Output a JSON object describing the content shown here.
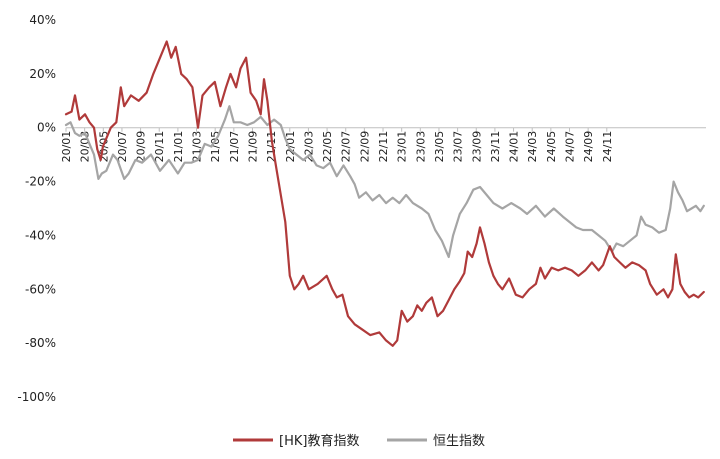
{
  "chart_data": {
    "type": "line",
    "title": "",
    "xlabel": "",
    "ylabel": "",
    "ylim": [
      -100,
      40
    ],
    "yticks": [
      "40%",
      "20%",
      "0%",
      "-20%",
      "-40%",
      "-60%",
      "-80%",
      "-100%"
    ],
    "ytick_values": [
      40,
      20,
      0,
      -20,
      -40,
      -60,
      -80,
      -100
    ],
    "xticks": [
      "20/01",
      "20/03",
      "20/05",
      "20/07",
      "20/09",
      "20/11",
      "21/01",
      "21/03",
      "21/05",
      "21/07",
      "21/09",
      "21/11",
      "22/01",
      "22/03",
      "22/05",
      "22/07",
      "22/09",
      "22/11",
      "23/01",
      "23/03",
      "23/05",
      "23/07",
      "23/09",
      "23/11",
      "24/01",
      "24/03",
      "24/05",
      "24/07",
      "24/09",
      "24/11"
    ],
    "x_range": [
      "2020-01",
      "2024-12"
    ],
    "grid": false,
    "legend_position": "bottom",
    "series": [
      {
        "name": "[HK]教育指数",
        "color": "#B03A3A",
        "points": [
          [
            2020.0,
            5
          ],
          [
            2020.05,
            6
          ],
          [
            2020.08,
            12
          ],
          [
            2020.12,
            3
          ],
          [
            2020.17,
            5
          ],
          [
            2020.21,
            2
          ],
          [
            2020.25,
            0
          ],
          [
            2020.28,
            -8
          ],
          [
            2020.31,
            -12
          ],
          [
            2020.33,
            -7
          ],
          [
            2020.4,
            0
          ],
          [
            2020.45,
            2
          ],
          [
            2020.49,
            15
          ],
          [
            2020.52,
            8
          ],
          [
            2020.58,
            12
          ],
          [
            2020.65,
            10
          ],
          [
            2020.72,
            13
          ],
          [
            2020.78,
            20
          ],
          [
            2020.83,
            25
          ],
          [
            2020.9,
            32
          ],
          [
            2020.94,
            26
          ],
          [
            2020.98,
            30
          ],
          [
            2021.03,
            20
          ],
          [
            2021.08,
            18
          ],
          [
            2021.13,
            15
          ],
          [
            2021.18,
            0
          ],
          [
            2021.22,
            12
          ],
          [
            2021.28,
            15
          ],
          [
            2021.33,
            17
          ],
          [
            2021.38,
            8
          ],
          [
            2021.43,
            15
          ],
          [
            2021.47,
            20
          ],
          [
            2021.52,
            15
          ],
          [
            2021.56,
            22
          ],
          [
            2021.61,
            26
          ],
          [
            2021.65,
            13
          ],
          [
            2021.7,
            10
          ],
          [
            2021.74,
            5
          ],
          [
            2021.77,
            18
          ],
          [
            2021.8,
            10
          ],
          [
            2021.84,
            -5
          ],
          [
            2021.88,
            -15
          ],
          [
            2021.92,
            -25
          ],
          [
            2021.96,
            -35
          ],
          [
            2022.0,
            -55
          ],
          [
            2022.04,
            -60
          ],
          [
            2022.08,
            -58
          ],
          [
            2022.12,
            -55
          ],
          [
            2022.17,
            -60
          ],
          [
            2022.25,
            -58
          ],
          [
            2022.33,
            -55
          ],
          [
            2022.38,
            -60
          ],
          [
            2022.42,
            -63
          ],
          [
            2022.47,
            -62
          ],
          [
            2022.52,
            -70
          ],
          [
            2022.58,
            -73
          ],
          [
            2022.65,
            -75
          ],
          [
            2022.72,
            -77
          ],
          [
            2022.8,
            -76
          ],
          [
            2022.86,
            -79
          ],
          [
            2022.92,
            -81
          ],
          [
            2022.96,
            -79
          ],
          [
            2023.0,
            -68
          ],
          [
            2023.05,
            -72
          ],
          [
            2023.1,
            -70
          ],
          [
            2023.14,
            -66
          ],
          [
            2023.18,
            -68
          ],
          [
            2023.22,
            -65
          ],
          [
            2023.27,
            -63
          ],
          [
            2023.32,
            -70
          ],
          [
            2023.37,
            -68
          ],
          [
            2023.42,
            -64
          ],
          [
            2023.47,
            -60
          ],
          [
            2023.52,
            -57
          ],
          [
            2023.56,
            -54
          ],
          [
            2023.59,
            -46
          ],
          [
            2023.63,
            -48
          ],
          [
            2023.67,
            -43
          ],
          [
            2023.7,
            -37
          ],
          [
            2023.74,
            -43
          ],
          [
            2023.78,
            -50
          ],
          [
            2023.82,
            -55
          ],
          [
            2023.86,
            -58
          ],
          [
            2023.9,
            -60
          ],
          [
            2023.96,
            -56
          ],
          [
            2024.02,
            -62
          ],
          [
            2024.08,
            -63
          ],
          [
            2024.14,
            -60
          ],
          [
            2024.2,
            -58
          ],
          [
            2024.24,
            -52
          ],
          [
            2024.28,
            -56
          ],
          [
            2024.34,
            -52
          ],
          [
            2024.4,
            -53
          ],
          [
            2024.46,
            -52
          ],
          [
            2024.52,
            -53
          ],
          [
            2024.58,
            -55
          ],
          [
            2024.64,
            -53
          ],
          [
            2024.7,
            -50
          ],
          [
            2024.76,
            -53
          ],
          [
            2024.8,
            -51
          ],
          [
            2024.86,
            -44
          ],
          [
            2024.9,
            -48
          ],
          [
            2024.95,
            -50
          ],
          [
            2025.0,
            -52
          ],
          [
            2025.06,
            -50
          ],
          [
            2025.12,
            -51
          ],
          [
            2025.18,
            -53
          ],
          [
            2025.22,
            -58
          ],
          [
            2025.28,
            -62
          ],
          [
            2025.34,
            -60
          ],
          [
            2025.38,
            -63
          ],
          [
            2025.42,
            -60
          ],
          [
            2025.45,
            -47
          ],
          [
            2025.49,
            -58
          ],
          [
            2025.53,
            -61
          ],
          [
            2025.57,
            -63
          ],
          [
            2025.61,
            -62
          ],
          [
            2025.65,
            -63
          ],
          [
            2025.7,
            -61
          ]
        ]
      },
      {
        "name": "恒生指数",
        "color": "#A5A5A5",
        "points": [
          [
            2020.0,
            1
          ],
          [
            2020.04,
            2
          ],
          [
            2020.08,
            -2
          ],
          [
            2020.12,
            -3
          ],
          [
            2020.17,
            -2
          ],
          [
            2020.21,
            -6
          ],
          [
            2020.25,
            -10
          ],
          [
            2020.29,
            -19
          ],
          [
            2020.32,
            -17
          ],
          [
            2020.36,
            -16
          ],
          [
            2020.42,
            -10
          ],
          [
            2020.46,
            -12
          ],
          [
            2020.52,
            -19
          ],
          [
            2020.56,
            -17
          ],
          [
            2020.62,
            -12
          ],
          [
            2020.68,
            -13
          ],
          [
            2020.76,
            -10
          ],
          [
            2020.84,
            -16
          ],
          [
            2020.92,
            -12
          ],
          [
            2021.0,
            -17
          ],
          [
            2021.06,
            -13
          ],
          [
            2021.12,
            -13
          ],
          [
            2021.18,
            -12
          ],
          [
            2021.24,
            -6
          ],
          [
            2021.3,
            -7
          ],
          [
            2021.36,
            -3
          ],
          [
            2021.42,
            3
          ],
          [
            2021.46,
            8
          ],
          [
            2021.5,
            2
          ],
          [
            2021.56,
            2
          ],
          [
            2021.62,
            1
          ],
          [
            2021.68,
            2
          ],
          [
            2021.74,
            4
          ],
          [
            2021.8,
            1
          ],
          [
            2021.86,
            3
          ],
          [
            2021.92,
            1
          ],
          [
            2021.96,
            -4
          ],
          [
            2022.0,
            -8
          ],
          [
            2022.06,
            -10
          ],
          [
            2022.12,
            -12
          ],
          [
            2022.18,
            -10
          ],
          [
            2022.24,
            -14
          ],
          [
            2022.3,
            -15
          ],
          [
            2022.36,
            -13
          ],
          [
            2022.42,
            -18
          ],
          [
            2022.48,
            -14
          ],
          [
            2022.54,
            -18
          ],
          [
            2022.58,
            -21
          ],
          [
            2022.62,
            -26
          ],
          [
            2022.68,
            -24
          ],
          [
            2022.74,
            -27
          ],
          [
            2022.8,
            -25
          ],
          [
            2022.86,
            -28
          ],
          [
            2022.92,
            -26
          ],
          [
            2022.98,
            -28
          ],
          [
            2023.04,
            -25
          ],
          [
            2023.1,
            -28
          ],
          [
            2023.18,
            -30
          ],
          [
            2023.24,
            -32
          ],
          [
            2023.3,
            -38
          ],
          [
            2023.36,
            -42
          ],
          [
            2023.42,
            -48
          ],
          [
            2023.46,
            -40
          ],
          [
            2023.52,
            -32
          ],
          [
            2023.58,
            -28
          ],
          [
            2023.64,
            -23
          ],
          [
            2023.7,
            -22
          ],
          [
            2023.76,
            -25
          ],
          [
            2023.82,
            -28
          ],
          [
            2023.9,
            -30
          ],
          [
            2023.98,
            -28
          ],
          [
            2024.06,
            -30
          ],
          [
            2024.12,
            -32
          ],
          [
            2024.2,
            -29
          ],
          [
            2024.28,
            -33
          ],
          [
            2024.36,
            -30
          ],
          [
            2024.44,
            -33
          ],
          [
            2024.5,
            -35
          ],
          [
            2024.56,
            -37
          ],
          [
            2024.62,
            -38
          ],
          [
            2024.7,
            -38
          ],
          [
            2024.76,
            -40
          ],
          [
            2024.82,
            -42
          ],
          [
            2024.88,
            -46
          ],
          [
            2024.92,
            -43
          ],
          [
            2024.98,
            -44
          ],
          [
            2025.04,
            -42
          ],
          [
            2025.1,
            -40
          ],
          [
            2025.14,
            -33
          ],
          [
            2025.18,
            -36
          ],
          [
            2025.24,
            -37
          ],
          [
            2025.3,
            -39
          ],
          [
            2025.36,
            -38
          ],
          [
            2025.4,
            -30
          ],
          [
            2025.43,
            -20
          ],
          [
            2025.47,
            -24
          ],
          [
            2025.51,
            -27
          ],
          [
            2025.55,
            -31
          ],
          [
            2025.59,
            -30
          ],
          [
            2025.63,
            -29
          ],
          [
            2025.67,
            -31
          ],
          [
            2025.7,
            -29
          ]
        ]
      }
    ]
  }
}
